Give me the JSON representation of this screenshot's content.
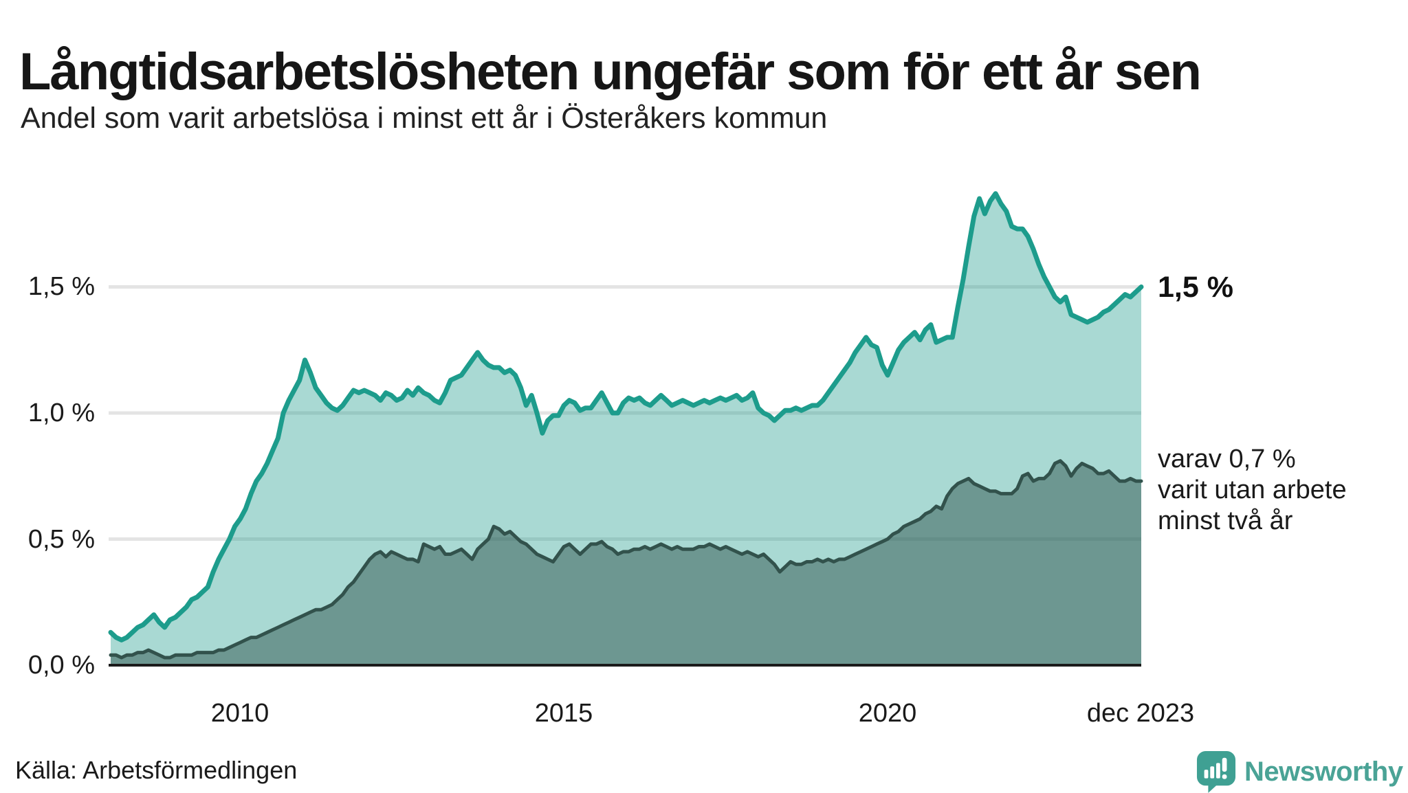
{
  "header": {
    "title": "Långtidsarbetslösheten ungefär som för ett år sen",
    "subtitle": "Andel som varit arbetslösa i minst ett år i Österåkers kommun"
  },
  "axis": {
    "y_ticks": [
      {
        "label": "1,5 %",
        "value": 1.5
      },
      {
        "label": "1,0 %",
        "value": 1.0
      },
      {
        "label": "0,5 %",
        "value": 0.5
      },
      {
        "label": "0,0 %",
        "value": 0.0
      }
    ],
    "x_ticks": [
      {
        "label": "2010",
        "year": 2010
      },
      {
        "label": "2015",
        "year": 2015
      },
      {
        "label": "2020",
        "year": 2020
      },
      {
        "label": "dec 2023",
        "year": 2023.92
      }
    ]
  },
  "annotations": {
    "latest_value": "1,5 %",
    "secondary_note": "varav 0,7 %\nvarit utan arbete\nminst två år"
  },
  "footer": {
    "source": "Källa: Arbetsförmedlingen",
    "logo_text": "Newsworthy"
  },
  "theme": {
    "line_primary": "#1d9c8c",
    "fill_primary": "rgba(29,156,140,0.38)",
    "line_secondary": "#32524c",
    "fill_secondary": "rgba(42,77,70,0.47)",
    "grid_color": "#e4e4e4",
    "baseline_color": "#1b1b1b",
    "logo_color": "#3fa093",
    "text_color": "#161616"
  },
  "chart_data": {
    "type": "area",
    "title": "Långtidsarbetslösheten ungefär som för ett år sen",
    "subtitle": "Andel som varit arbetslösa i minst ett år i Österåkers kommun",
    "unit": "%",
    "frequency": "monthly",
    "x_start": "2008-01",
    "x_end": "2023-12",
    "x_tick_labels": [
      "2010",
      "2015",
      "2020",
      "dec 2023"
    ],
    "ylim": [
      0,
      2.0
    ],
    "y_tick_values": [
      0.0,
      0.5,
      1.0,
      1.5
    ],
    "grid": true,
    "legend": "inline-annotations",
    "latest_values": {
      "minst_ett_ar": 1.5,
      "minst_tva_ar": 0.7
    },
    "series": [
      {
        "name": "Andel arbetslösa minst ett år",
        "color": "#1d9c8c",
        "fill": "rgba(29,156,140,0.38)",
        "values": [
          0.13,
          0.11,
          0.1,
          0.11,
          0.13,
          0.15,
          0.16,
          0.18,
          0.2,
          0.17,
          0.15,
          0.18,
          0.19,
          0.21,
          0.23,
          0.26,
          0.27,
          0.29,
          0.31,
          0.37,
          0.42,
          0.46,
          0.5,
          0.55,
          0.58,
          0.62,
          0.68,
          0.73,
          0.76,
          0.8,
          0.85,
          0.9,
          1.0,
          1.05,
          1.09,
          1.13,
          1.21,
          1.16,
          1.1,
          1.07,
          1.04,
          1.02,
          1.01,
          1.03,
          1.06,
          1.09,
          1.08,
          1.09,
          1.08,
          1.07,
          1.05,
          1.08,
          1.07,
          1.05,
          1.06,
          1.09,
          1.07,
          1.1,
          1.08,
          1.07,
          1.05,
          1.04,
          1.08,
          1.13,
          1.14,
          1.15,
          1.18,
          1.21,
          1.24,
          1.21,
          1.19,
          1.18,
          1.18,
          1.16,
          1.17,
          1.15,
          1.1,
          1.03,
          1.07,
          1.0,
          0.92,
          0.97,
          0.99,
          0.99,
          1.03,
          1.05,
          1.04,
          1.01,
          1.02,
          1.02,
          1.05,
          1.08,
          1.04,
          1.0,
          1.0,
          1.04,
          1.06,
          1.05,
          1.06,
          1.04,
          1.03,
          1.05,
          1.07,
          1.05,
          1.03,
          1.04,
          1.05,
          1.04,
          1.03,
          1.04,
          1.05,
          1.04,
          1.05,
          1.06,
          1.05,
          1.06,
          1.07,
          1.05,
          1.06,
          1.08,
          1.02,
          1.0,
          0.99,
          0.97,
          0.99,
          1.01,
          1.01,
          1.02,
          1.01,
          1.02,
          1.03,
          1.03,
          1.05,
          1.08,
          1.11,
          1.14,
          1.17,
          1.2,
          1.24,
          1.27,
          1.3,
          1.27,
          1.26,
          1.19,
          1.15,
          1.2,
          1.25,
          1.28,
          1.3,
          1.32,
          1.29,
          1.33,
          1.35,
          1.28,
          1.29,
          1.3,
          1.3,
          1.42,
          1.53,
          1.66,
          1.78,
          1.85,
          1.79,
          1.84,
          1.87,
          1.83,
          1.8,
          1.74,
          1.73,
          1.73,
          1.7,
          1.65,
          1.59,
          1.54,
          1.5,
          1.46,
          1.44,
          1.46,
          1.39,
          1.38,
          1.37,
          1.36,
          1.37,
          1.38,
          1.4,
          1.41,
          1.43,
          1.45,
          1.47,
          1.46,
          1.48,
          1.5
        ]
      },
      {
        "name": "varav utan arbete minst två år",
        "color": "#32524c",
        "fill": "rgba(42,77,70,0.47)",
        "values": [
          0.04,
          0.04,
          0.03,
          0.04,
          0.04,
          0.05,
          0.05,
          0.06,
          0.05,
          0.04,
          0.03,
          0.03,
          0.04,
          0.04,
          0.04,
          0.04,
          0.05,
          0.05,
          0.05,
          0.05,
          0.06,
          0.06,
          0.07,
          0.08,
          0.09,
          0.1,
          0.11,
          0.11,
          0.12,
          0.13,
          0.14,
          0.15,
          0.16,
          0.17,
          0.18,
          0.19,
          0.2,
          0.21,
          0.22,
          0.22,
          0.23,
          0.24,
          0.26,
          0.28,
          0.31,
          0.33,
          0.36,
          0.39,
          0.42,
          0.44,
          0.45,
          0.43,
          0.45,
          0.44,
          0.43,
          0.42,
          0.42,
          0.41,
          0.48,
          0.47,
          0.46,
          0.47,
          0.44,
          0.44,
          0.45,
          0.46,
          0.44,
          0.42,
          0.46,
          0.48,
          0.5,
          0.55,
          0.54,
          0.52,
          0.53,
          0.51,
          0.49,
          0.48,
          0.46,
          0.44,
          0.43,
          0.42,
          0.41,
          0.44,
          0.47,
          0.48,
          0.46,
          0.44,
          0.46,
          0.48,
          0.48,
          0.49,
          0.47,
          0.46,
          0.44,
          0.45,
          0.45,
          0.46,
          0.46,
          0.47,
          0.46,
          0.47,
          0.48,
          0.47,
          0.46,
          0.47,
          0.46,
          0.46,
          0.46,
          0.47,
          0.47,
          0.48,
          0.47,
          0.46,
          0.47,
          0.46,
          0.45,
          0.44,
          0.45,
          0.44,
          0.43,
          0.44,
          0.42,
          0.4,
          0.37,
          0.39,
          0.41,
          0.4,
          0.4,
          0.41,
          0.41,
          0.42,
          0.41,
          0.42,
          0.41,
          0.42,
          0.42,
          0.43,
          0.44,
          0.45,
          0.46,
          0.47,
          0.48,
          0.49,
          0.5,
          0.52,
          0.53,
          0.55,
          0.56,
          0.57,
          0.58,
          0.6,
          0.61,
          0.63,
          0.62,
          0.67,
          0.7,
          0.72,
          0.73,
          0.74,
          0.72,
          0.71,
          0.7,
          0.69,
          0.69,
          0.68,
          0.68,
          0.68,
          0.7,
          0.75,
          0.76,
          0.73,
          0.74,
          0.74,
          0.76,
          0.8,
          0.81,
          0.79,
          0.75,
          0.78,
          0.8,
          0.79,
          0.78,
          0.76,
          0.76,
          0.77,
          0.75,
          0.73,
          0.73,
          0.74,
          0.73,
          0.73
        ]
      }
    ]
  }
}
